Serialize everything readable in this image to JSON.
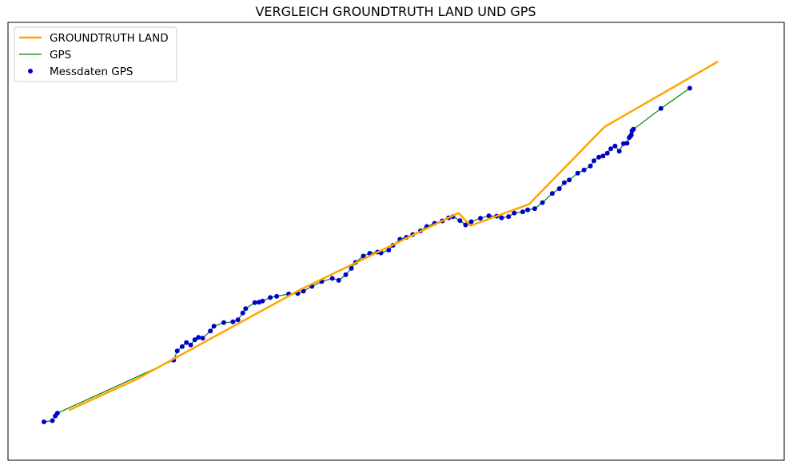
{
  "chart_data": {
    "type": "line",
    "title": "VERGLEICH GROUNDTRUTH LAND UND GPS",
    "xlabel": "",
    "ylabel": "",
    "axes_ticks": "none",
    "grid": false,
    "legend_position": "top-left",
    "xlim": [
      0,
      100
    ],
    "ylim": [
      0,
      100
    ],
    "series": [
      {
        "name": "GROUNDTRUTH LAND",
        "kind": "line",
        "color": "#FFA500",
        "x": [
          3.5,
          13.0,
          36.5,
          58.8,
          60.5,
          68.8,
          79.5,
          95.6
        ],
        "y": [
          7.5,
          15.2,
          37.9,
          57.0,
          53.8,
          59.2,
          78.6,
          95.0
        ]
      },
      {
        "name": "GPS",
        "kind": "line",
        "color": "#008000",
        "x": [
          0.0,
          1.2,
          1.6,
          1.9,
          18.4,
          18.9,
          19.6,
          20.2,
          20.8,
          21.4,
          21.9,
          22.5,
          23.6,
          24.1,
          25.5,
          26.8,
          27.5,
          28.2,
          28.6,
          29.9,
          30.5,
          31.0,
          32.1,
          33.0,
          34.7,
          36.0,
          36.8,
          38.0,
          39.4,
          40.9,
          41.8,
          42.8,
          43.6,
          44.2,
          45.3,
          46.2,
          47.3,
          47.8,
          48.9,
          49.5,
          50.5,
          51.4,
          52.3,
          53.4,
          54.3,
          55.4,
          56.5,
          57.4,
          58.0,
          59.0,
          59.8,
          60.6,
          61.9,
          63.1,
          64.2,
          64.9,
          65.9,
          66.7,
          67.9,
          68.6,
          69.6,
          70.7,
          72.1,
          73.1,
          73.8,
          74.5,
          75.7,
          76.6,
          77.5,
          78.0,
          78.7,
          79.3,
          79.9,
          80.4,
          81.0,
          81.6,
          82.2,
          82.7,
          83.0,
          83.2,
          83.3,
          83.4,
          83.6,
          87.5,
          91.6
        ],
        "y": [
          4.6,
          4.9,
          6.1,
          6.8,
          20.1,
          22.4,
          23.5,
          24.5,
          23.9,
          25.2,
          25.8,
          25.6,
          27.4,
          28.6,
          29.5,
          29.7,
          30.2,
          31.9,
          33.0,
          34.5,
          34.6,
          34.9,
          35.8,
          36.1,
          36.7,
          36.8,
          37.4,
          38.6,
          39.8,
          40.6,
          40.1,
          41.5,
          43.1,
          44.6,
          46.2,
          46.9,
          47.2,
          47.0,
          47.7,
          48.9,
          50.4,
          50.9,
          51.6,
          52.5,
          53.6,
          54.4,
          55.0,
          55.8,
          56.1,
          55.1,
          54.0,
          54.8,
          55.7,
          56.3,
          56.2,
          55.8,
          56.1,
          57.0,
          57.3,
          57.8,
          58.1,
          59.6,
          61.9,
          63.1,
          64.6,
          65.3,
          67.0,
          67.8,
          68.8,
          70.1,
          71.0,
          71.3,
          72.0,
          73.1,
          73.8,
          72.5,
          74.4,
          74.5,
          75.9,
          76.3,
          76.6,
          77.6,
          78.0,
          83.2,
          88.3
        ]
      },
      {
        "name": "Messdaten GPS",
        "kind": "scatter",
        "color": "#0000CC",
        "x": [
          0.0,
          1.2,
          1.6,
          1.9,
          18.4,
          18.9,
          19.6,
          20.2,
          20.8,
          21.4,
          21.9,
          22.5,
          23.6,
          24.1,
          25.5,
          26.8,
          27.5,
          28.2,
          28.6,
          29.9,
          30.5,
          31.0,
          32.1,
          33.0,
          34.7,
          36.0,
          36.8,
          38.0,
          39.4,
          40.9,
          41.8,
          42.8,
          43.6,
          44.2,
          45.3,
          46.2,
          47.3,
          47.8,
          48.9,
          49.5,
          50.5,
          51.4,
          52.3,
          53.4,
          54.3,
          55.4,
          56.5,
          57.4,
          58.0,
          59.0,
          59.8,
          60.6,
          61.9,
          63.1,
          64.2,
          64.9,
          65.9,
          66.7,
          67.9,
          68.6,
          69.6,
          70.7,
          72.1,
          73.1,
          73.8,
          74.5,
          75.7,
          76.6,
          77.5,
          78.0,
          78.7,
          79.3,
          79.9,
          80.4,
          81.0,
          81.6,
          82.2,
          82.7,
          83.0,
          83.2,
          83.3,
          83.4,
          83.6,
          87.5,
          91.6
        ],
        "y": [
          4.6,
          4.9,
          6.1,
          6.8,
          20.1,
          22.4,
          23.5,
          24.5,
          23.9,
          25.2,
          25.8,
          25.6,
          27.4,
          28.6,
          29.5,
          29.7,
          30.2,
          31.9,
          33.0,
          34.5,
          34.6,
          34.9,
          35.8,
          36.1,
          36.7,
          36.8,
          37.4,
          38.6,
          39.8,
          40.6,
          40.1,
          41.5,
          43.1,
          44.6,
          46.2,
          46.9,
          47.2,
          47.0,
          47.7,
          48.9,
          50.4,
          50.9,
          51.6,
          52.5,
          53.6,
          54.4,
          55.0,
          55.8,
          56.1,
          55.1,
          54.0,
          54.8,
          55.7,
          56.3,
          56.2,
          55.8,
          56.1,
          57.0,
          57.3,
          57.8,
          58.1,
          59.6,
          61.9,
          63.1,
          64.6,
          65.3,
          67.0,
          67.8,
          68.8,
          70.1,
          71.0,
          71.3,
          72.0,
          73.1,
          73.8,
          72.5,
          74.4,
          74.5,
          75.9,
          76.3,
          76.6,
          77.6,
          78.0,
          83.2,
          88.3
        ]
      }
    ]
  }
}
